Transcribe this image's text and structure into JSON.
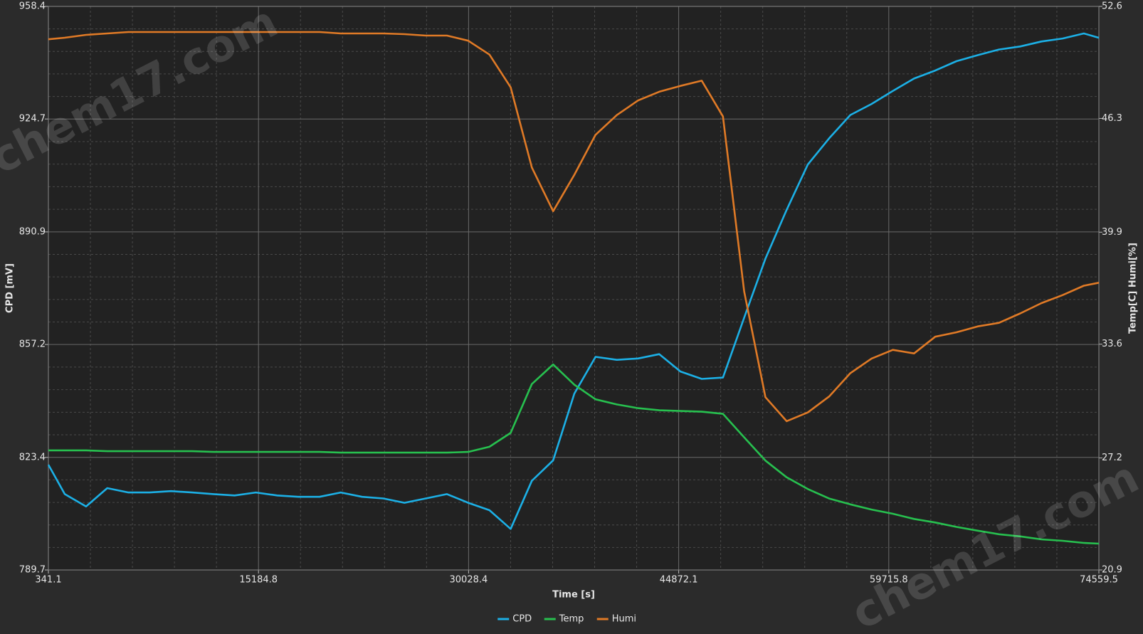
{
  "chart_data": {
    "type": "line",
    "xlabel": "Time [s]",
    "ylabel": "CPD [mV]",
    "y2label": "Temp[C] Humi[%]",
    "watermark": "chem17.com",
    "xlim": [
      341.1,
      74559.5
    ],
    "xticks": [
      341.1,
      15184.8,
      30028.4,
      44872.1,
      59715.8,
      74559.5
    ],
    "ylim": [
      789.7,
      958.4
    ],
    "yticks": [
      789.7,
      823.4,
      857.2,
      890.9,
      924.7,
      958.4
    ],
    "y2lim": [
      20.9,
      52.6
    ],
    "y2ticks": [
      20.9,
      27.2,
      33.6,
      39.9,
      46.3,
      52.6
    ],
    "grid": true,
    "minor_grid": true,
    "legend": "bottom",
    "x": [
      341.1,
      1500,
      3000,
      4500,
      6000,
      7500,
      9000,
      10500,
      12000,
      13500,
      15000,
      16500,
      18000,
      19500,
      21000,
      22500,
      24000,
      25500,
      27000,
      28500,
      30000,
      31500,
      33000,
      34500,
      36000,
      37500,
      39000,
      40500,
      42000,
      43500,
      45000,
      46500,
      48000,
      49500,
      51000,
      52500,
      54000,
      55500,
      57000,
      58500,
      60000,
      61500,
      63000,
      64500,
      66000,
      67500,
      69000,
      70500,
      72000,
      73500,
      74559.5
    ],
    "series": [
      {
        "name": "CPD",
        "color": "#1cb0e6",
        "values": [
          821.2,
          812.4,
          808.7,
          814.2,
          812.9,
          812.9,
          813.3,
          812.9,
          812.4,
          812.0,
          812.9,
          812.0,
          811.6,
          811.6,
          812.9,
          811.6,
          811.1,
          809.8,
          811.1,
          812.4,
          809.8,
          807.6,
          802.0,
          816.4,
          822.5,
          842.5,
          853.5,
          852.6,
          853.0,
          854.3,
          849.1,
          846.9,
          847.3,
          865.2,
          882.9,
          897.5,
          911.1,
          918.9,
          925.9,
          929.2,
          933.1,
          936.8,
          939.2,
          942.0,
          943.8,
          945.5,
          946.4,
          947.9,
          948.8,
          950.3,
          949.0
        ]
      },
      {
        "name": "Temp",
        "color": "#27c04f",
        "axis": "y2",
        "values": [
          27.63,
          27.63,
          27.63,
          27.58,
          27.58,
          27.58,
          27.58,
          27.58,
          27.54,
          27.54,
          27.54,
          27.54,
          27.54,
          27.54,
          27.5,
          27.5,
          27.5,
          27.5,
          27.5,
          27.5,
          27.54,
          27.83,
          28.61,
          31.36,
          32.46,
          31.32,
          30.5,
          30.21,
          30.0,
          29.88,
          29.84,
          29.8,
          29.68,
          28.36,
          27.05,
          26.11,
          25.45,
          24.92,
          24.59,
          24.3,
          24.06,
          23.77,
          23.57,
          23.32,
          23.11,
          22.91,
          22.79,
          22.62,
          22.54,
          22.42,
          22.38
        ]
      },
      {
        "name": "Humi",
        "color": "#e07a26",
        "axis": "y2",
        "values": [
          50.75,
          50.84,
          51.0,
          51.08,
          51.16,
          51.16,
          51.16,
          51.16,
          51.16,
          51.16,
          51.16,
          51.16,
          51.16,
          51.16,
          51.08,
          51.08,
          51.08,
          51.04,
          50.96,
          50.96,
          50.67,
          49.89,
          48.05,
          43.54,
          41.08,
          43.13,
          45.38,
          46.49,
          47.31,
          47.8,
          48.13,
          48.42,
          46.41,
          36.57,
          30.62,
          29.27,
          29.76,
          30.66,
          31.97,
          32.79,
          33.28,
          33.08,
          34.02,
          34.27,
          34.6,
          34.8,
          35.33,
          35.91,
          36.36,
          36.89,
          37.06
        ]
      }
    ]
  }
}
